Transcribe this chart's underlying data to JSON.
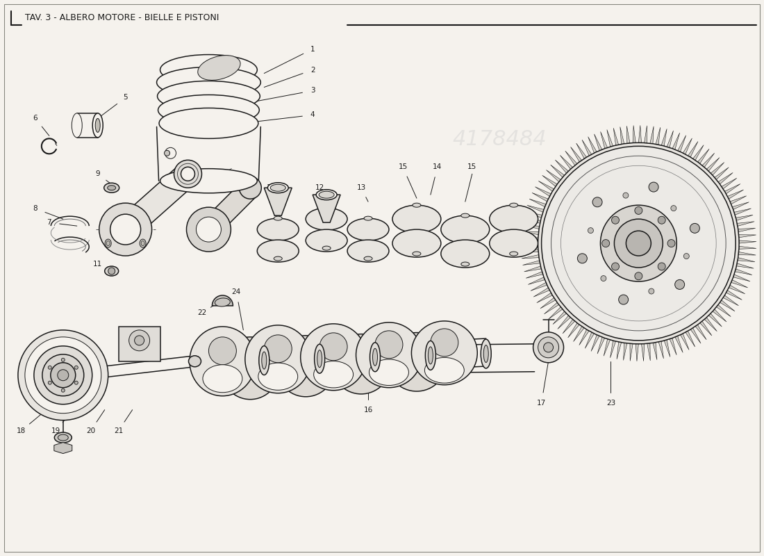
{
  "title": "TAV. 3 - ALBERO MOTORE - BIELLE E PISTONI",
  "bg": "#f5f2ed",
  "lc": "#1a1a1a",
  "lc_light": "#555555",
  "wm": "4178484",
  "fig_w": 11.0,
  "fig_h": 8.0,
  "dpi": 100
}
